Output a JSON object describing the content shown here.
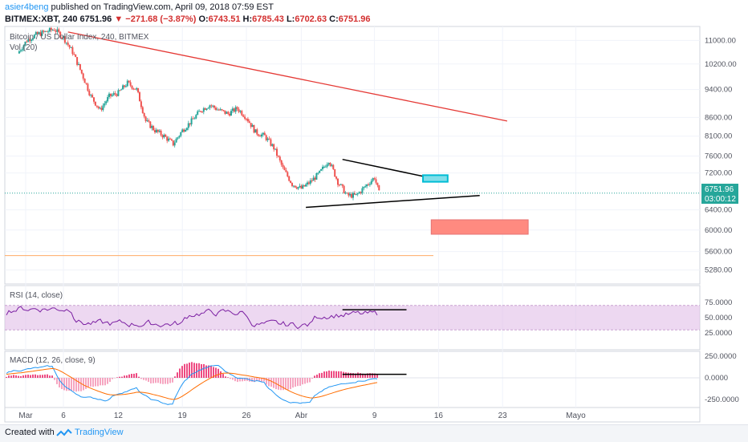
{
  "header": {
    "author": "asier4beng",
    "published": "published on TradingView.com, April 09, 2018 07:59 EST",
    "symbol": "BITMEX:XBT, 240",
    "change": "▼ −271.68 (−3.87%)",
    "price": "6751.96",
    "open_label": "O:",
    "open": "6743.51",
    "high_label": "H:",
    "high": "6785.43",
    "low_label": "L:",
    "low": "6702.63",
    "close_label": "C:",
    "close": "6751.96"
  },
  "chart_data": {
    "type": "candlestick",
    "pane_title": "Bitcoin / US Dollar Index, 240, BITMEX",
    "volume_label": "Vol (20)",
    "x_ticks": [
      "Mar",
      "6",
      "12",
      "19",
      "26",
      "Abr",
      "9",
      "16",
      "23",
      "Mayo"
    ],
    "y_ticks": [
      "11000.00",
      "10200.00",
      "9400.00",
      "8600.00",
      "8100.00",
      "7600.00",
      "7200.00",
      "6400.00",
      "6000.00",
      "5600.00",
      "5280.00"
    ],
    "y_scale": "log",
    "last_price": "6751.96",
    "countdown": "03:00:12",
    "price_path": [
      [
        "Mar 1",
        10550
      ],
      [
        "Mar 2",
        11000
      ],
      [
        "Mar 3",
        11200
      ],
      [
        "Mar 4",
        11300
      ],
      [
        "Mar 5",
        11400
      ],
      [
        "Mar 6",
        11100
      ],
      [
        "Mar 7",
        10600
      ],
      [
        "Mar 8",
        9900
      ],
      [
        "Mar 9",
        9200
      ],
      [
        "Mar 10",
        8800
      ],
      [
        "Mar 11",
        9200
      ],
      [
        "Mar 12",
        9300
      ],
      [
        "Mar 13",
        9600
      ],
      [
        "Mar 14",
        9400
      ],
      [
        "Mar 15",
        8500
      ],
      [
        "Mar 16",
        8250
      ],
      [
        "Mar 17",
        8100
      ],
      [
        "Mar 18",
        7900
      ],
      [
        "Mar 19",
        8250
      ],
      [
        "Mar 20",
        8500
      ],
      [
        "Mar 21",
        8800
      ],
      [
        "Mar 22",
        8950
      ],
      [
        "Mar 23",
        8800
      ],
      [
        "Mar 24",
        8700
      ],
      [
        "Mar 25",
        8850
      ],
      [
        "Mar 26",
        8600
      ],
      [
        "Mar 27",
        8200
      ],
      [
        "Mar 28",
        8100
      ],
      [
        "Mar 29",
        7800
      ],
      [
        "Mar 30",
        7300
      ],
      [
        "Mar 31",
        6950
      ],
      [
        "Apr 1",
        6850
      ],
      [
        "Apr 2",
        7000
      ],
      [
        "Apr 3",
        7200
      ],
      [
        "Apr 4",
        7500
      ],
      [
        "Apr 5",
        7000
      ],
      [
        "Apr 6",
        6700
      ],
      [
        "Apr 7",
        6700
      ],
      [
        "Apr 8",
        6900
      ],
      [
        "Apr 9",
        7100
      ],
      [
        "Apr 9 12:00",
        6751.96
      ]
    ],
    "rsi": {
      "label": "RSI (14, close)",
      "y_ticks": [
        "75.0000",
        "50.0000",
        "25.0000"
      ],
      "band": [
        30,
        70
      ]
    },
    "macd": {
      "label": "MACD (12, 26, close, 9)",
      "y_ticks": [
        "250.0000",
        "0.0000",
        "-250.0000"
      ]
    }
  },
  "colors": {
    "up": "#26a69a",
    "down": "#ef5350",
    "trendline": "#e53935",
    "rsi_band": "#e1bee7",
    "rsi_line": "#7b1fa2",
    "macd_line": "#2196f3",
    "signal_line": "#ff6d00",
    "target_box": "#ff8a80",
    "entry_box": "#80deea",
    "price_label": "#26a69a"
  },
  "footer": {
    "created_with": "Created with",
    "brand": "TradingView"
  }
}
